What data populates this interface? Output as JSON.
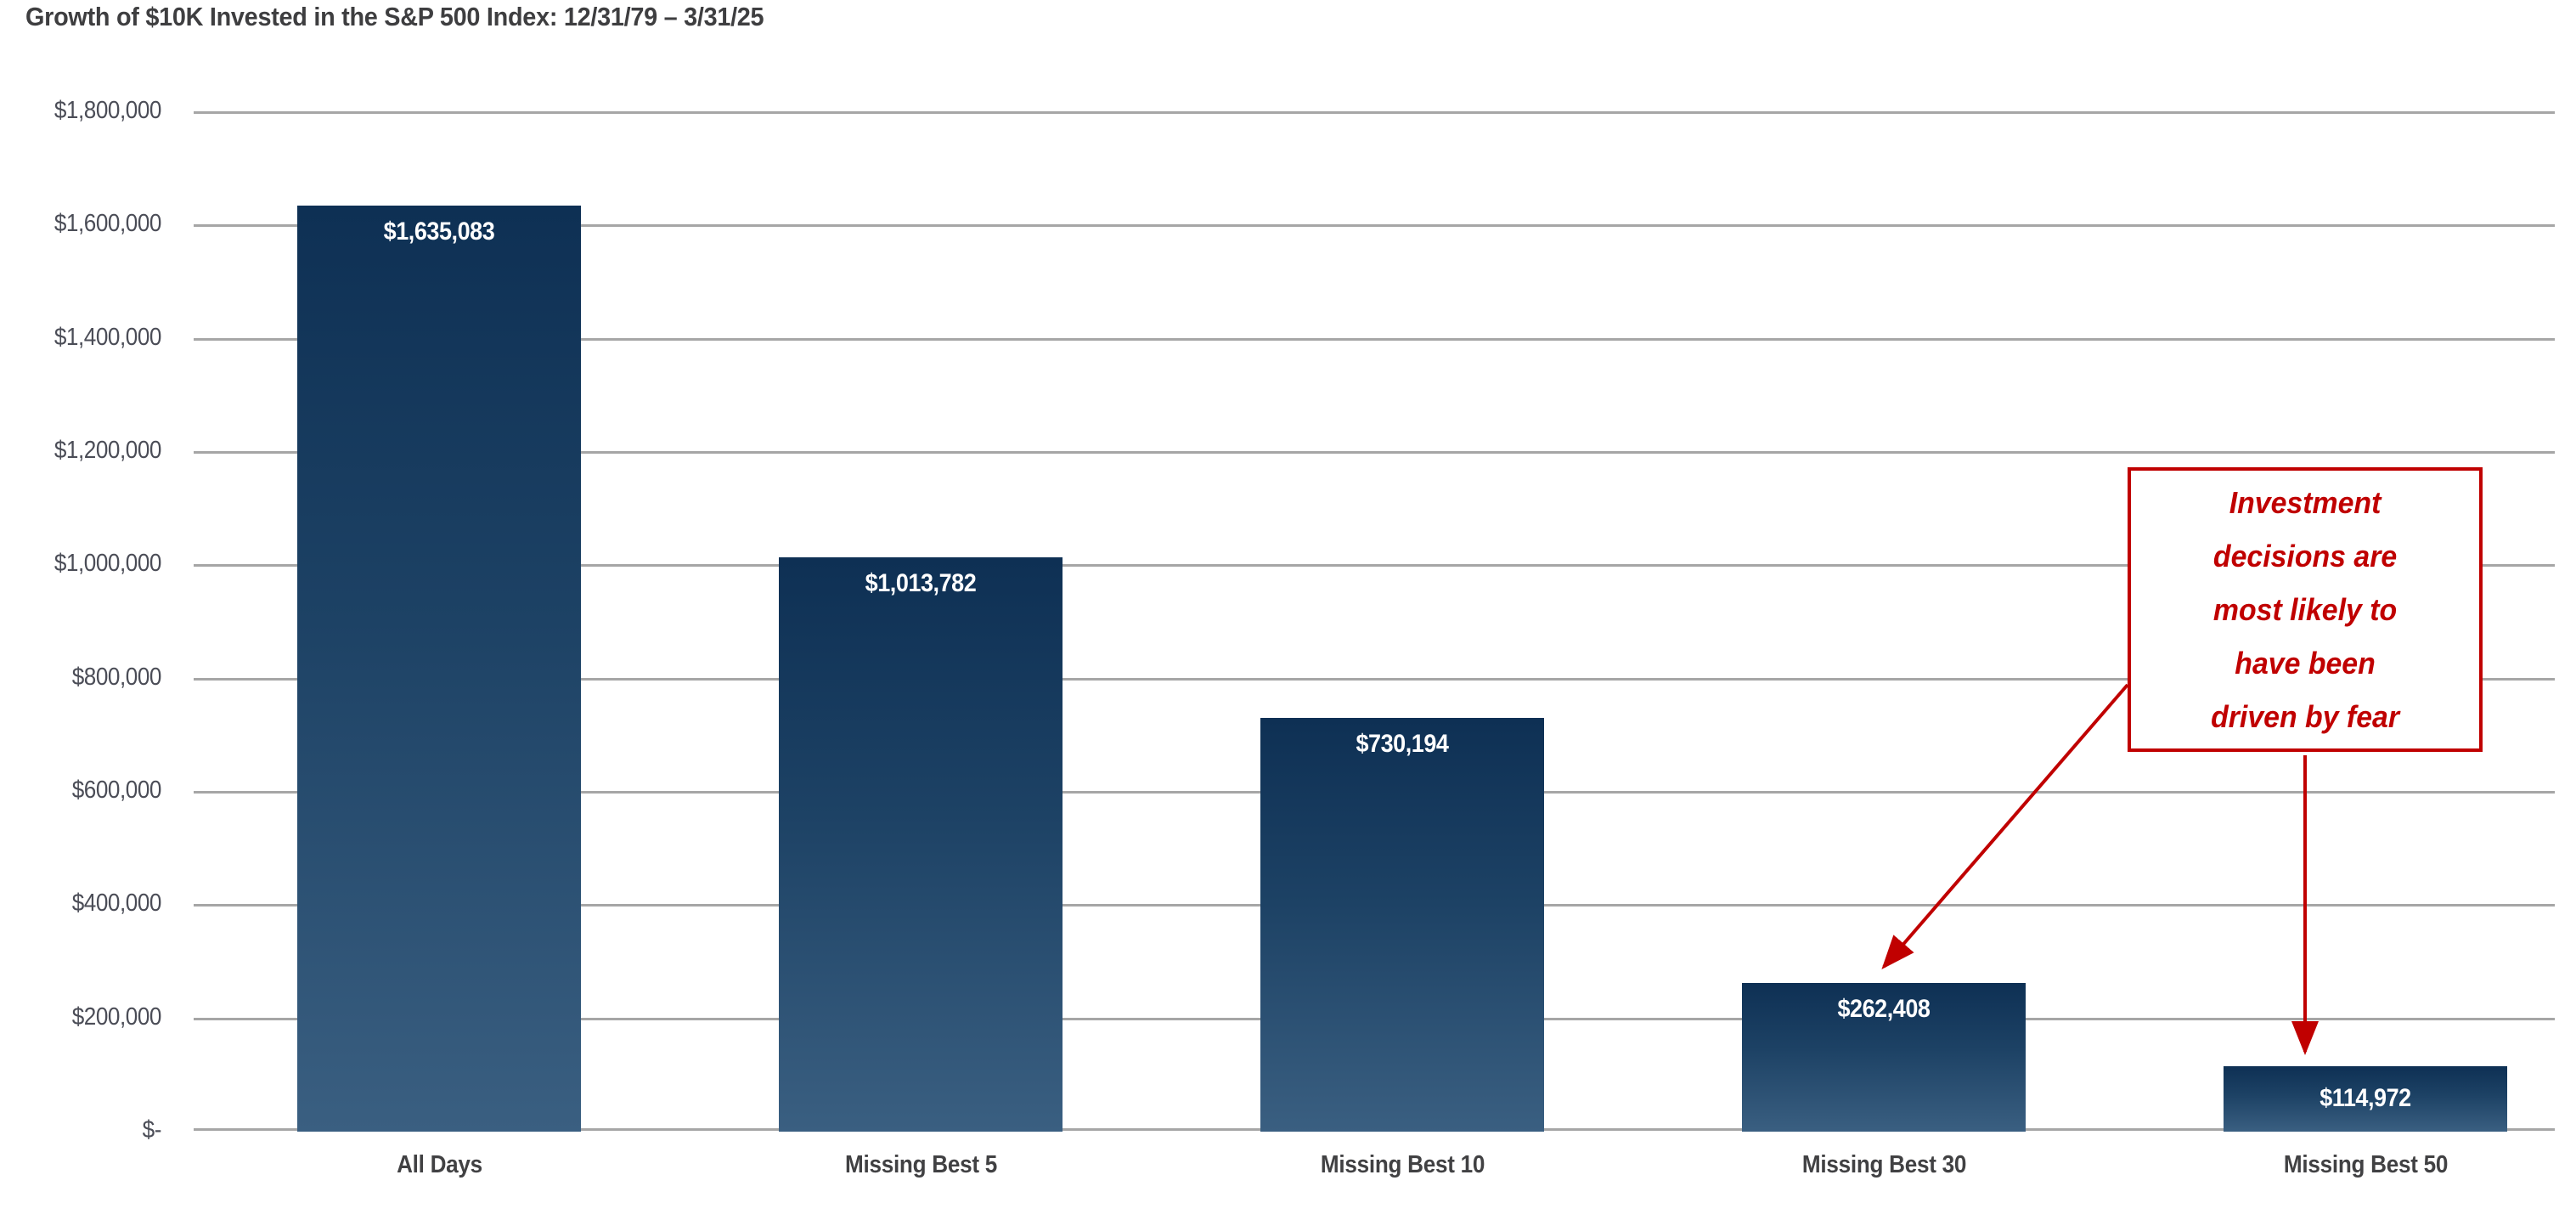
{
  "title": "Growth of $10K Invested in the S&P 500 Index: 12/31/79 – 3/31/25",
  "colors": {
    "bar_gradient_top": "#0E3054",
    "bar_gradient_bottom": "#3A5F81",
    "gridline": "#A6A6A6",
    "axis_text": "#4B4D57",
    "category_text": "#414143",
    "value_label_text": "#FFFFFF",
    "annotation_red": "#C00000",
    "title_text": "#3E3E40"
  },
  "annotation": {
    "text": "Investment decisions are most likely to have been driven by fear",
    "lines": [
      "Investment",
      "decisions are",
      "most likely to",
      "have been",
      "driven by fear"
    ],
    "points_to": [
      "Missing Best 30",
      "Missing Best 50"
    ]
  },
  "chart_data": {
    "type": "bar",
    "title": "Growth of $10K Invested in the S&P 500 Index: 12/31/79 – 3/31/25",
    "categories": [
      "All Days",
      "Missing Best 5",
      "Missing Best 10",
      "Missing Best 30",
      "Missing Best 50"
    ],
    "values": [
      1635083,
      1013782,
      730194,
      262408,
      114972
    ],
    "value_labels": [
      "$1,635,083",
      "$1,013,782",
      "$730,194",
      "$262,408",
      "$114,972"
    ],
    "xlabel": "",
    "ylabel": "",
    "ylim": [
      0,
      1800000
    ],
    "y_tick_step": 200000,
    "y_tick_labels": [
      "$-",
      "$200,000",
      "$400,000",
      "$600,000",
      "$800,000",
      "$1,000,000",
      "$1,200,000",
      "$1,400,000",
      "$1,600,000",
      "$1,800,000"
    ],
    "grid": "horizontal",
    "legend": "none",
    "annotation_text": "Investment decisions are most likely to have been driven by fear"
  }
}
